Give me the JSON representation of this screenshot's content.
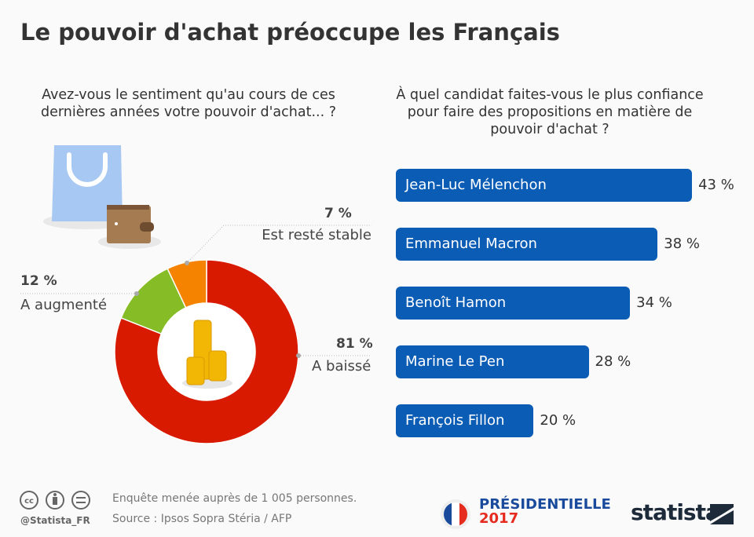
{
  "title": "Le pouvoir d'achat préoccupe les Français",
  "chart_data": [
    {
      "type": "pie",
      "title": "Avez-vous le sentiment qu'au cours de ces dernières années votre pouvoir d'achat... ?",
      "categories": [
        "A baissé",
        "A augmenté",
        "Est resté stable"
      ],
      "values": [
        81,
        12,
        7
      ],
      "labels": [
        "81 %",
        "12 %",
        "7 %"
      ],
      "colors": [
        "#d81b00",
        "#86bc25",
        "#f58300"
      ]
    },
    {
      "type": "bar",
      "orientation": "horizontal",
      "title": "À quel candidat faites-vous le plus confiance pour faire des propositions en matière de pouvoir d'achat ?",
      "categories": [
        "Jean-Luc Mélenchon",
        "Emmanuel Macron",
        "Benoît Hamon",
        "Marine Le Pen",
        "François Fillon"
      ],
      "values": [
        43,
        38,
        34,
        28,
        20
      ],
      "labels": [
        "43 %",
        "38 %",
        "34 %",
        "28 %",
        "20 %"
      ],
      "color": "#0b5cb5"
    }
  ],
  "footer": {
    "note": "Enquête menée auprès de 1 005 personnes.",
    "source": "Source : Ipsos Sopra Stéria / AFP",
    "handle": "@Statista_FR",
    "badge_line1": "PRÉSIDENTIELLE",
    "badge_line2": "2017",
    "brand": "statista"
  }
}
